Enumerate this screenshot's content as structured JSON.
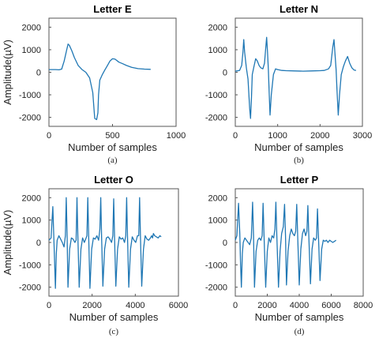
{
  "colors": {
    "series": "#1f77b4"
  },
  "chart_data": [
    {
      "type": "line",
      "title": "Letter E",
      "xlabel": "Number of samples",
      "ylabel": "Amplitude(µV)",
      "caption": "(a)",
      "xlim": [
        0,
        1000
      ],
      "ylim": [
        -2400,
        2400
      ],
      "xticks": [
        0,
        500,
        1000
      ],
      "yticks": [
        -2000,
        -1000,
        0,
        1000,
        2000
      ],
      "x": [
        0,
        50,
        80,
        100,
        120,
        140,
        150,
        160,
        180,
        200,
        230,
        260,
        290,
        320,
        345,
        355,
        360,
        375,
        385,
        390,
        400,
        420,
        440,
        460,
        480,
        500,
        520,
        550,
        580,
        610,
        650,
        700,
        750,
        800
      ],
      "y": [
        120,
        120,
        110,
        140,
        500,
        1000,
        1250,
        1200,
        950,
        650,
        300,
        120,
        0,
        -250,
        -900,
        -1700,
        -2050,
        -2100,
        -1800,
        -1000,
        -350,
        -100,
        100,
        300,
        500,
        600,
        580,
        450,
        380,
        300,
        220,
        160,
        140,
        130
      ]
    },
    {
      "type": "line",
      "title": "Letter N",
      "xlabel": "Number of samples",
      "ylabel": "",
      "caption": "(b)",
      "xlim": [
        0,
        3000
      ],
      "ylim": [
        -2400,
        2400
      ],
      "xticks": [
        0,
        1000,
        2000,
        3000
      ],
      "yticks": [
        -2000,
        -1000,
        0,
        1000,
        2000
      ],
      "x": [
        0,
        100,
        150,
        180,
        200,
        220,
        260,
        300,
        340,
        360,
        380,
        400,
        440,
        480,
        520,
        560,
        600,
        650,
        690,
        720,
        740,
        760,
        780,
        800,
        820,
        850,
        900,
        950,
        1000,
        1100,
        1200,
        1400,
        1600,
        1800,
        2000,
        2100,
        2200,
        2250,
        2270,
        2300,
        2330,
        2350,
        2380,
        2400,
        2430,
        2460,
        2500,
        2550,
        2600,
        2650,
        2700,
        2750,
        2800,
        2850
      ],
      "y": [
        50,
        80,
        300,
        900,
        1450,
        900,
        200,
        -300,
        -1600,
        -2050,
        -1200,
        -100,
        250,
        600,
        500,
        300,
        200,
        150,
        400,
        1100,
        1550,
        900,
        100,
        -900,
        -1900,
        -1000,
        -100,
        150,
        120,
        80,
        70,
        60,
        50,
        60,
        70,
        80,
        150,
        300,
        600,
        1100,
        1450,
        900,
        100,
        -800,
        -1900,
        -1000,
        -100,
        250,
        500,
        700,
        400,
        200,
        100,
        80
      ]
    },
    {
      "type": "line",
      "title": "Letter O",
      "xlabel": "Number of samples",
      "ylabel": "Amplitude(µV)",
      "caption": "(c)",
      "xlim": [
        0,
        6000
      ],
      "ylim": [
        -2400,
        2400
      ],
      "xticks": [
        0,
        2000,
        4000,
        6000
      ],
      "yticks": [
        -2000,
        -1000,
        0,
        1000,
        2000
      ],
      "x": [
        0,
        100,
        180,
        220,
        260,
        300,
        340,
        380,
        460,
        540,
        620,
        700,
        760,
        800,
        840,
        880,
        960,
        1040,
        1120,
        1200,
        1260,
        1300,
        1340,
        1400,
        1480,
        1560,
        1640,
        1700,
        1760,
        1800,
        1840,
        1900,
        1980,
        2060,
        2140,
        2220,
        2300,
        2360,
        2400,
        2440,
        2500,
        2580,
        2660,
        2740,
        2820,
        2900,
        2960,
        3000,
        3040,
        3100,
        3180,
        3260,
        3340,
        3420,
        3500,
        3560,
        3600,
        3640,
        3700,
        3780,
        3860,
        3940,
        4020,
        4100,
        4160,
        4200,
        4240,
        4300,
        4380,
        4460,
        4540,
        4620,
        4700,
        4760,
        4800,
        4840,
        4900,
        4980,
        5060,
        5140,
        5200
      ],
      "y": [
        100,
        200,
        1600,
        400,
        -800,
        -2050,
        -500,
        100,
        300,
        150,
        0,
        -200,
        300,
        2000,
        300,
        -2000,
        -300,
        200,
        150,
        0,
        100,
        2000,
        300,
        -2000,
        -300,
        200,
        0,
        150,
        300,
        2000,
        300,
        -2050,
        -300,
        200,
        150,
        300,
        100,
        600,
        2000,
        200,
        -1950,
        -300,
        200,
        250,
        150,
        0,
        300,
        1950,
        200,
        -1950,
        -300,
        250,
        150,
        200,
        0,
        300,
        2000,
        250,
        -2000,
        -300,
        250,
        100,
        0,
        300,
        300,
        2000,
        250,
        -1950,
        -300,
        300,
        150,
        100,
        200,
        300,
        200,
        400,
        300,
        250,
        200,
        300,
        250
      ]
    },
    {
      "type": "line",
      "title": "Letter P",
      "xlabel": "Number of samples",
      "ylabel": "",
      "caption": "(d)",
      "xlim": [
        0,
        8000
      ],
      "ylim": [
        -2400,
        2400
      ],
      "xticks": [
        0,
        2000,
        4000,
        6000,
        8000
      ],
      "yticks": [
        -2000,
        -1000,
        0,
        1000,
        2000
      ],
      "x": [
        0,
        100,
        200,
        280,
        330,
        380,
        440,
        500,
        600,
        700,
        800,
        900,
        1000,
        1080,
        1140,
        1200,
        1300,
        1400,
        1500,
        1600,
        1680,
        1740,
        1800,
        1900,
        2000,
        2100,
        2200,
        2300,
        2400,
        2480,
        2540,
        2600,
        2700,
        2800,
        2900,
        3000,
        3080,
        3140,
        3200,
        3300,
        3400,
        3500,
        3600,
        3700,
        3780,
        3840,
        3900,
        4000,
        4100,
        4200,
        4300,
        4400,
        4480,
        4540,
        4600,
        4700,
        4800,
        4900,
        5000,
        5080,
        5140,
        5200,
        5300,
        5400,
        5500,
        5600,
        5700,
        5800,
        5900,
        6000,
        6100,
        6200,
        6300
      ],
      "y": [
        100,
        300,
        1750,
        400,
        -1000,
        -2000,
        -500,
        0,
        200,
        100,
        0,
        -100,
        200,
        1800,
        300,
        -2000,
        -400,
        100,
        200,
        100,
        300,
        1750,
        300,
        -2000,
        -400,
        200,
        0,
        300,
        200,
        600,
        1800,
        300,
        -2000,
        -400,
        400,
        700,
        1700,
        300,
        -1900,
        -400,
        300,
        600,
        400,
        300,
        500,
        1700,
        300,
        -1900,
        -300,
        400,
        600,
        300,
        500,
        1650,
        300,
        -1850,
        -300,
        200,
        100,
        200,
        1500,
        300,
        -1700,
        -300,
        100,
        50,
        100,
        0,
        100,
        50,
        0,
        50,
        100
      ]
    }
  ]
}
